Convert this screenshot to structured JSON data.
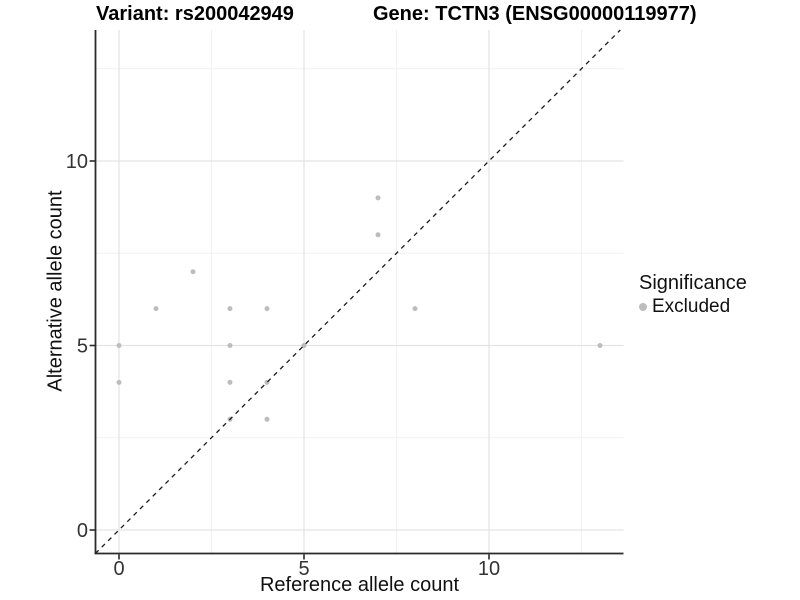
{
  "titles": {
    "left": "Variant: rs200042949",
    "right": "Gene: TCTN3 (ENSG00000119977)"
  },
  "chart_data": {
    "type": "scatter",
    "title_left": "Variant: rs200042949",
    "title_right": "Gene: TCTN3 (ENSG00000119977)",
    "xlabel": "Reference allele count",
    "ylabel": "Alternative allele count",
    "points": [
      {
        "x": 0,
        "y": 4
      },
      {
        "x": 0,
        "y": 5
      },
      {
        "x": 1,
        "y": 6
      },
      {
        "x": 2,
        "y": 7
      },
      {
        "x": 3,
        "y": 3
      },
      {
        "x": 3,
        "y": 4
      },
      {
        "x": 3,
        "y": 5
      },
      {
        "x": 3,
        "y": 6
      },
      {
        "x": 4,
        "y": 3
      },
      {
        "x": 4,
        "y": 4
      },
      {
        "x": 4,
        "y": 6
      },
      {
        "x": 5,
        "y": 5
      },
      {
        "x": 7,
        "y": 8
      },
      {
        "x": 7,
        "y": 9
      },
      {
        "x": 8,
        "y": 6
      },
      {
        "x": 13,
        "y": 5
      }
    ],
    "series_name": "Excluded",
    "xticks": [
      0,
      5,
      10
    ],
    "yticks": [
      0,
      5,
      10
    ],
    "minor_ticks": [
      2.5,
      7.5,
      12.5
    ],
    "xlim": [
      -0.65,
      13.65
    ],
    "ylim": [
      -0.65,
      13.55
    ],
    "grid": "major+minor",
    "identity_line": {
      "slope": 1,
      "intercept": 0,
      "style": "dashed"
    },
    "legend": {
      "position": "right",
      "title": "Significance",
      "items": [
        {
          "label": "Excluded",
          "color": "#bdbdbd"
        }
      ]
    },
    "colors": {
      "point": "#bdbdbd",
      "grid_major": "#e3e3e3",
      "grid_minor": "#f1f1f1",
      "axis": "#2a2a2a",
      "tick_label": "#333333",
      "identity_line": "#1c1c1c"
    }
  }
}
